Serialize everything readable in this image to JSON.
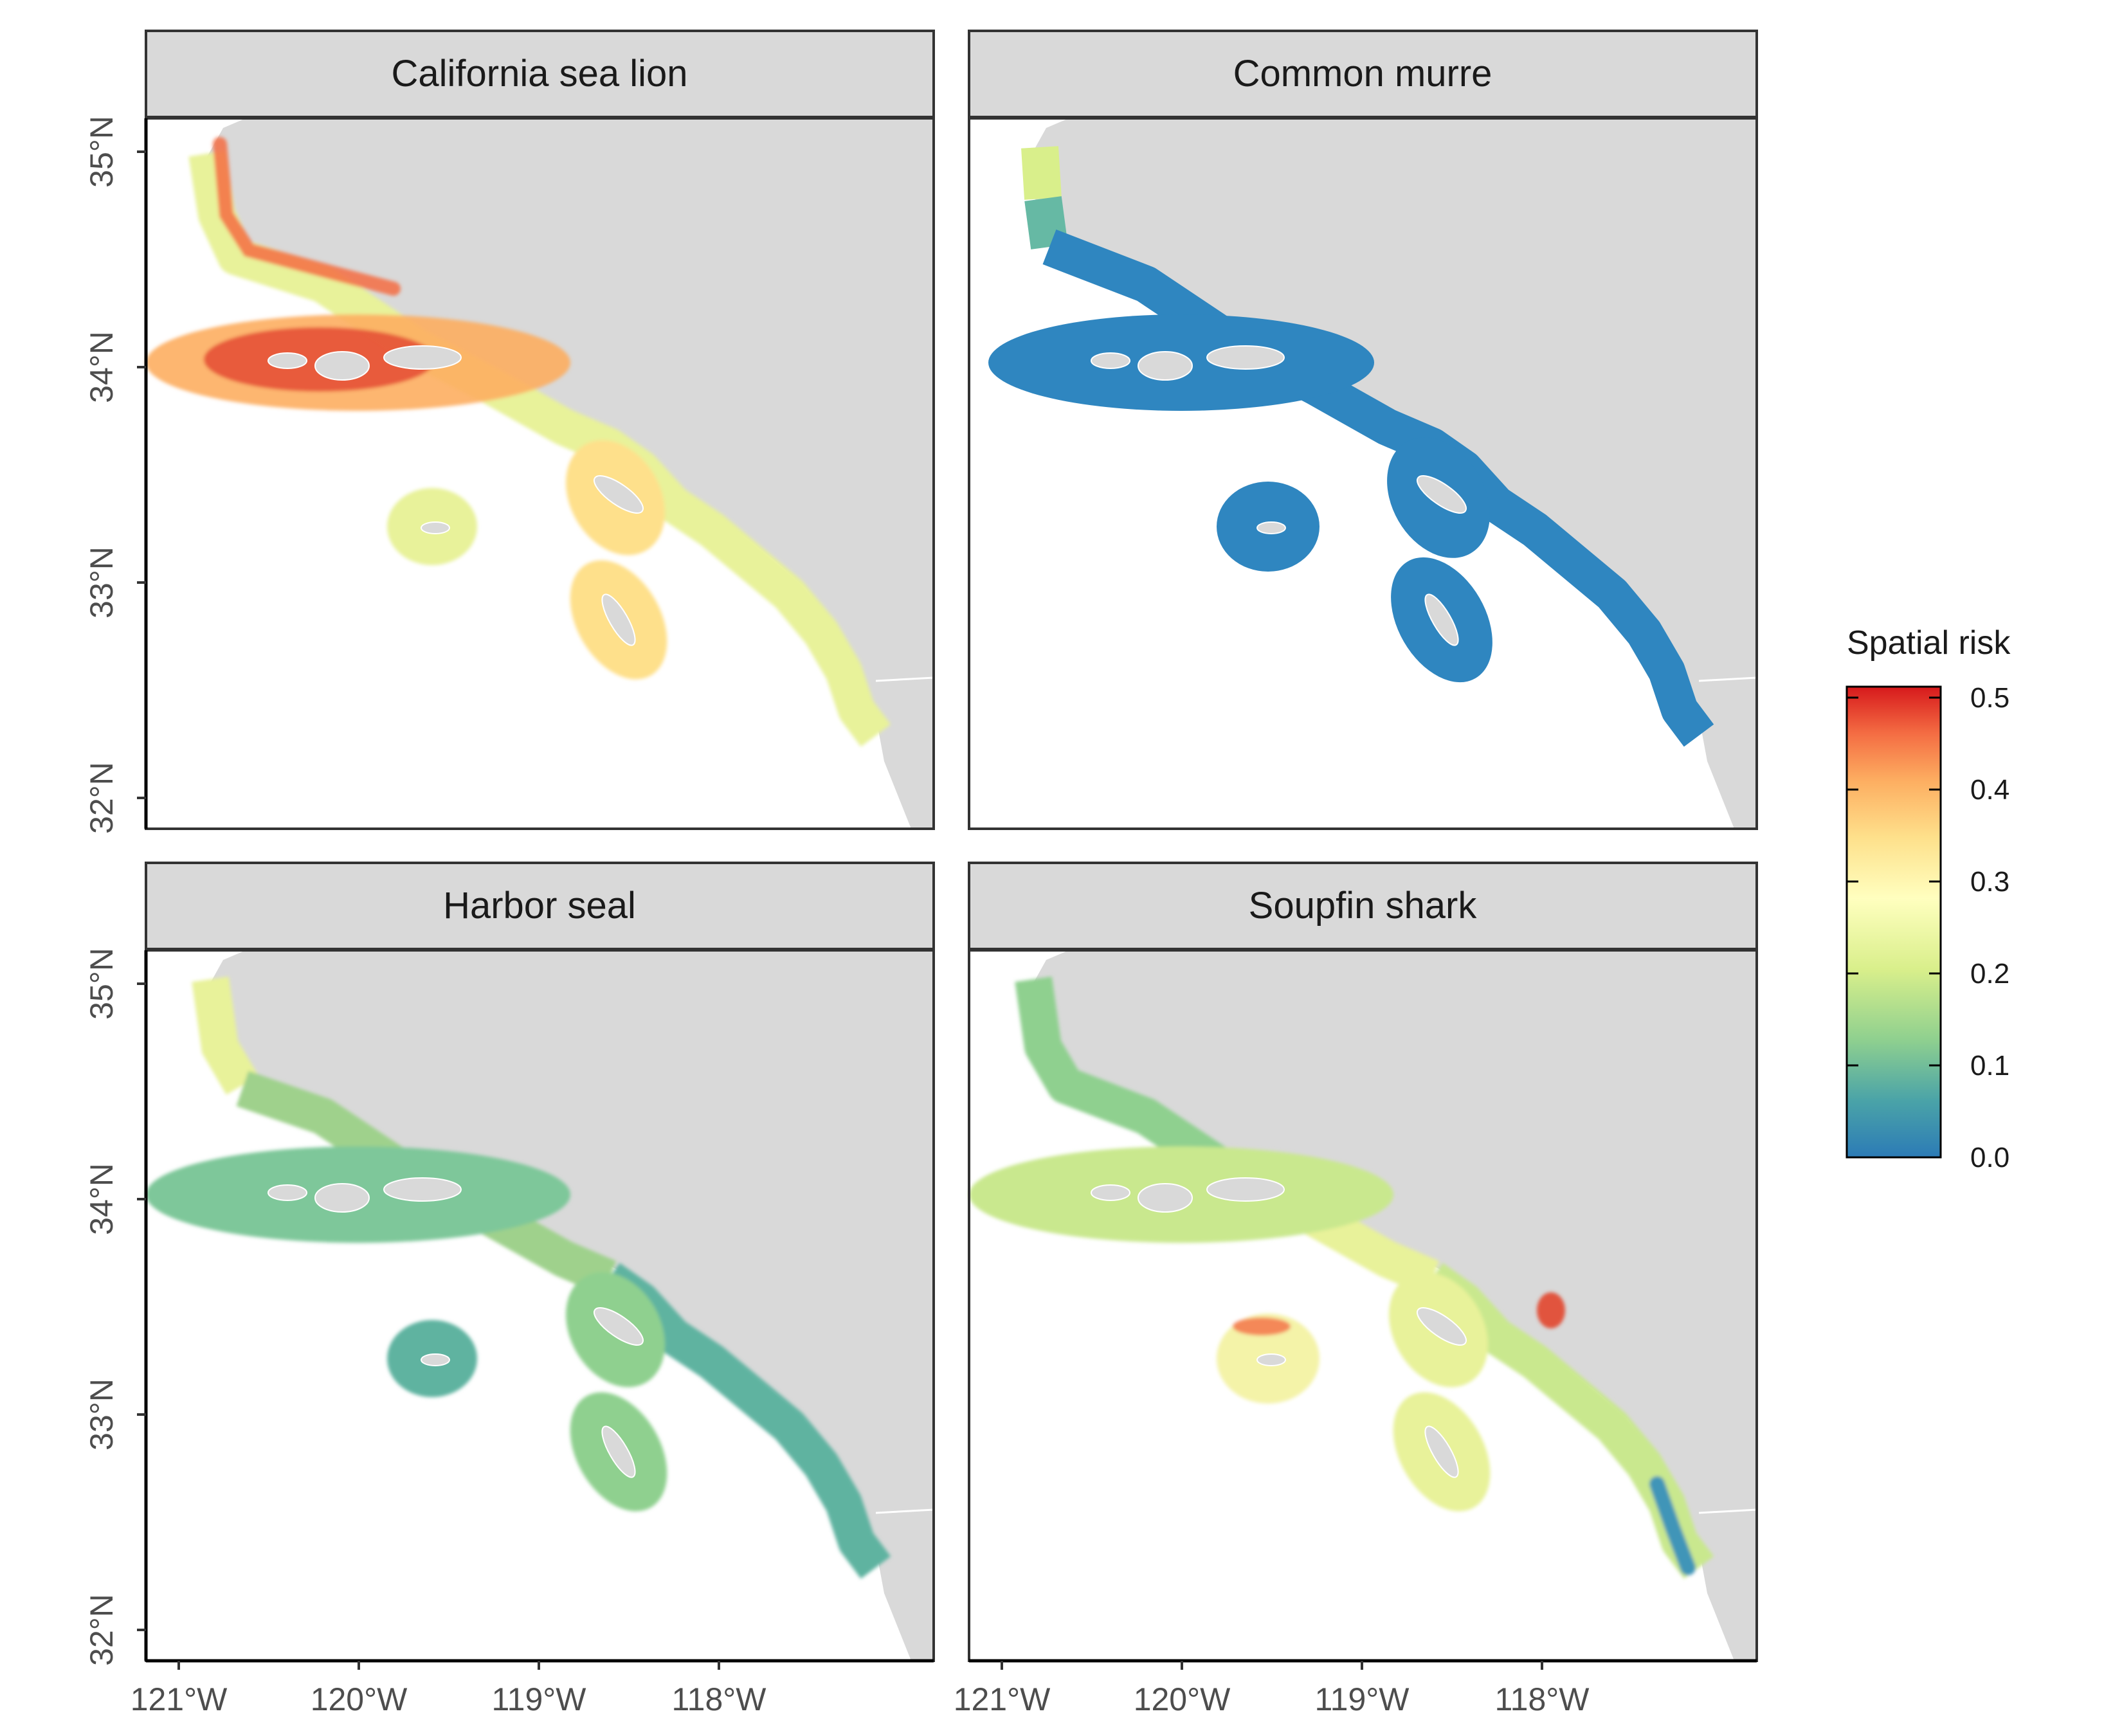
{
  "panels": [
    {
      "title": "California sea lion",
      "species": "sea_lion"
    },
    {
      "title": "Common murre",
      "species": "murre"
    },
    {
      "title": "Harbor seal",
      "species": "harbor_seal"
    },
    {
      "title": "Soupfin shark",
      "species": "soupfin"
    }
  ],
  "axes": {
    "x_ticks": [
      {
        "value": -121,
        "label": "121°W"
      },
      {
        "value": -120,
        "label": "120°W"
      },
      {
        "value": -119,
        "label": "119°W"
      },
      {
        "value": -118,
        "label": "118°W"
      }
    ],
    "y_ticks": [
      {
        "value": 35,
        "label": "35°N"
      },
      {
        "value": 34,
        "label": "34°N"
      },
      {
        "value": 33,
        "label": "33°N"
      },
      {
        "value": 32,
        "label": "32°N"
      }
    ],
    "lon_range": [
      -121.2,
      -116.8
    ],
    "lat_range": [
      31.85,
      35.15
    ]
  },
  "legend": {
    "title": "Spatial risk",
    "ticks": [
      {
        "value": 0.5,
        "label": "0.5"
      },
      {
        "value": 0.4,
        "label": "0.4"
      },
      {
        "value": 0.3,
        "label": "0.3"
      },
      {
        "value": 0.2,
        "label": "0.2"
      },
      {
        "value": 0.1,
        "label": "0.1"
      },
      {
        "value": 0.0,
        "label": "0.0"
      }
    ],
    "range": [
      0,
      0.5
    ],
    "colors": [
      "#2c7bb6",
      "#4aa3a8",
      "#8fd08f",
      "#d9ef8b",
      "#ffffbf",
      "#fee08b",
      "#fdae61",
      "#f46d43",
      "#d7191c"
    ]
  },
  "colors": {
    "land": "#d9d9d9",
    "ocean": "#ffffff",
    "strip_bg": "#d9d9d9",
    "border": "#333333"
  }
}
